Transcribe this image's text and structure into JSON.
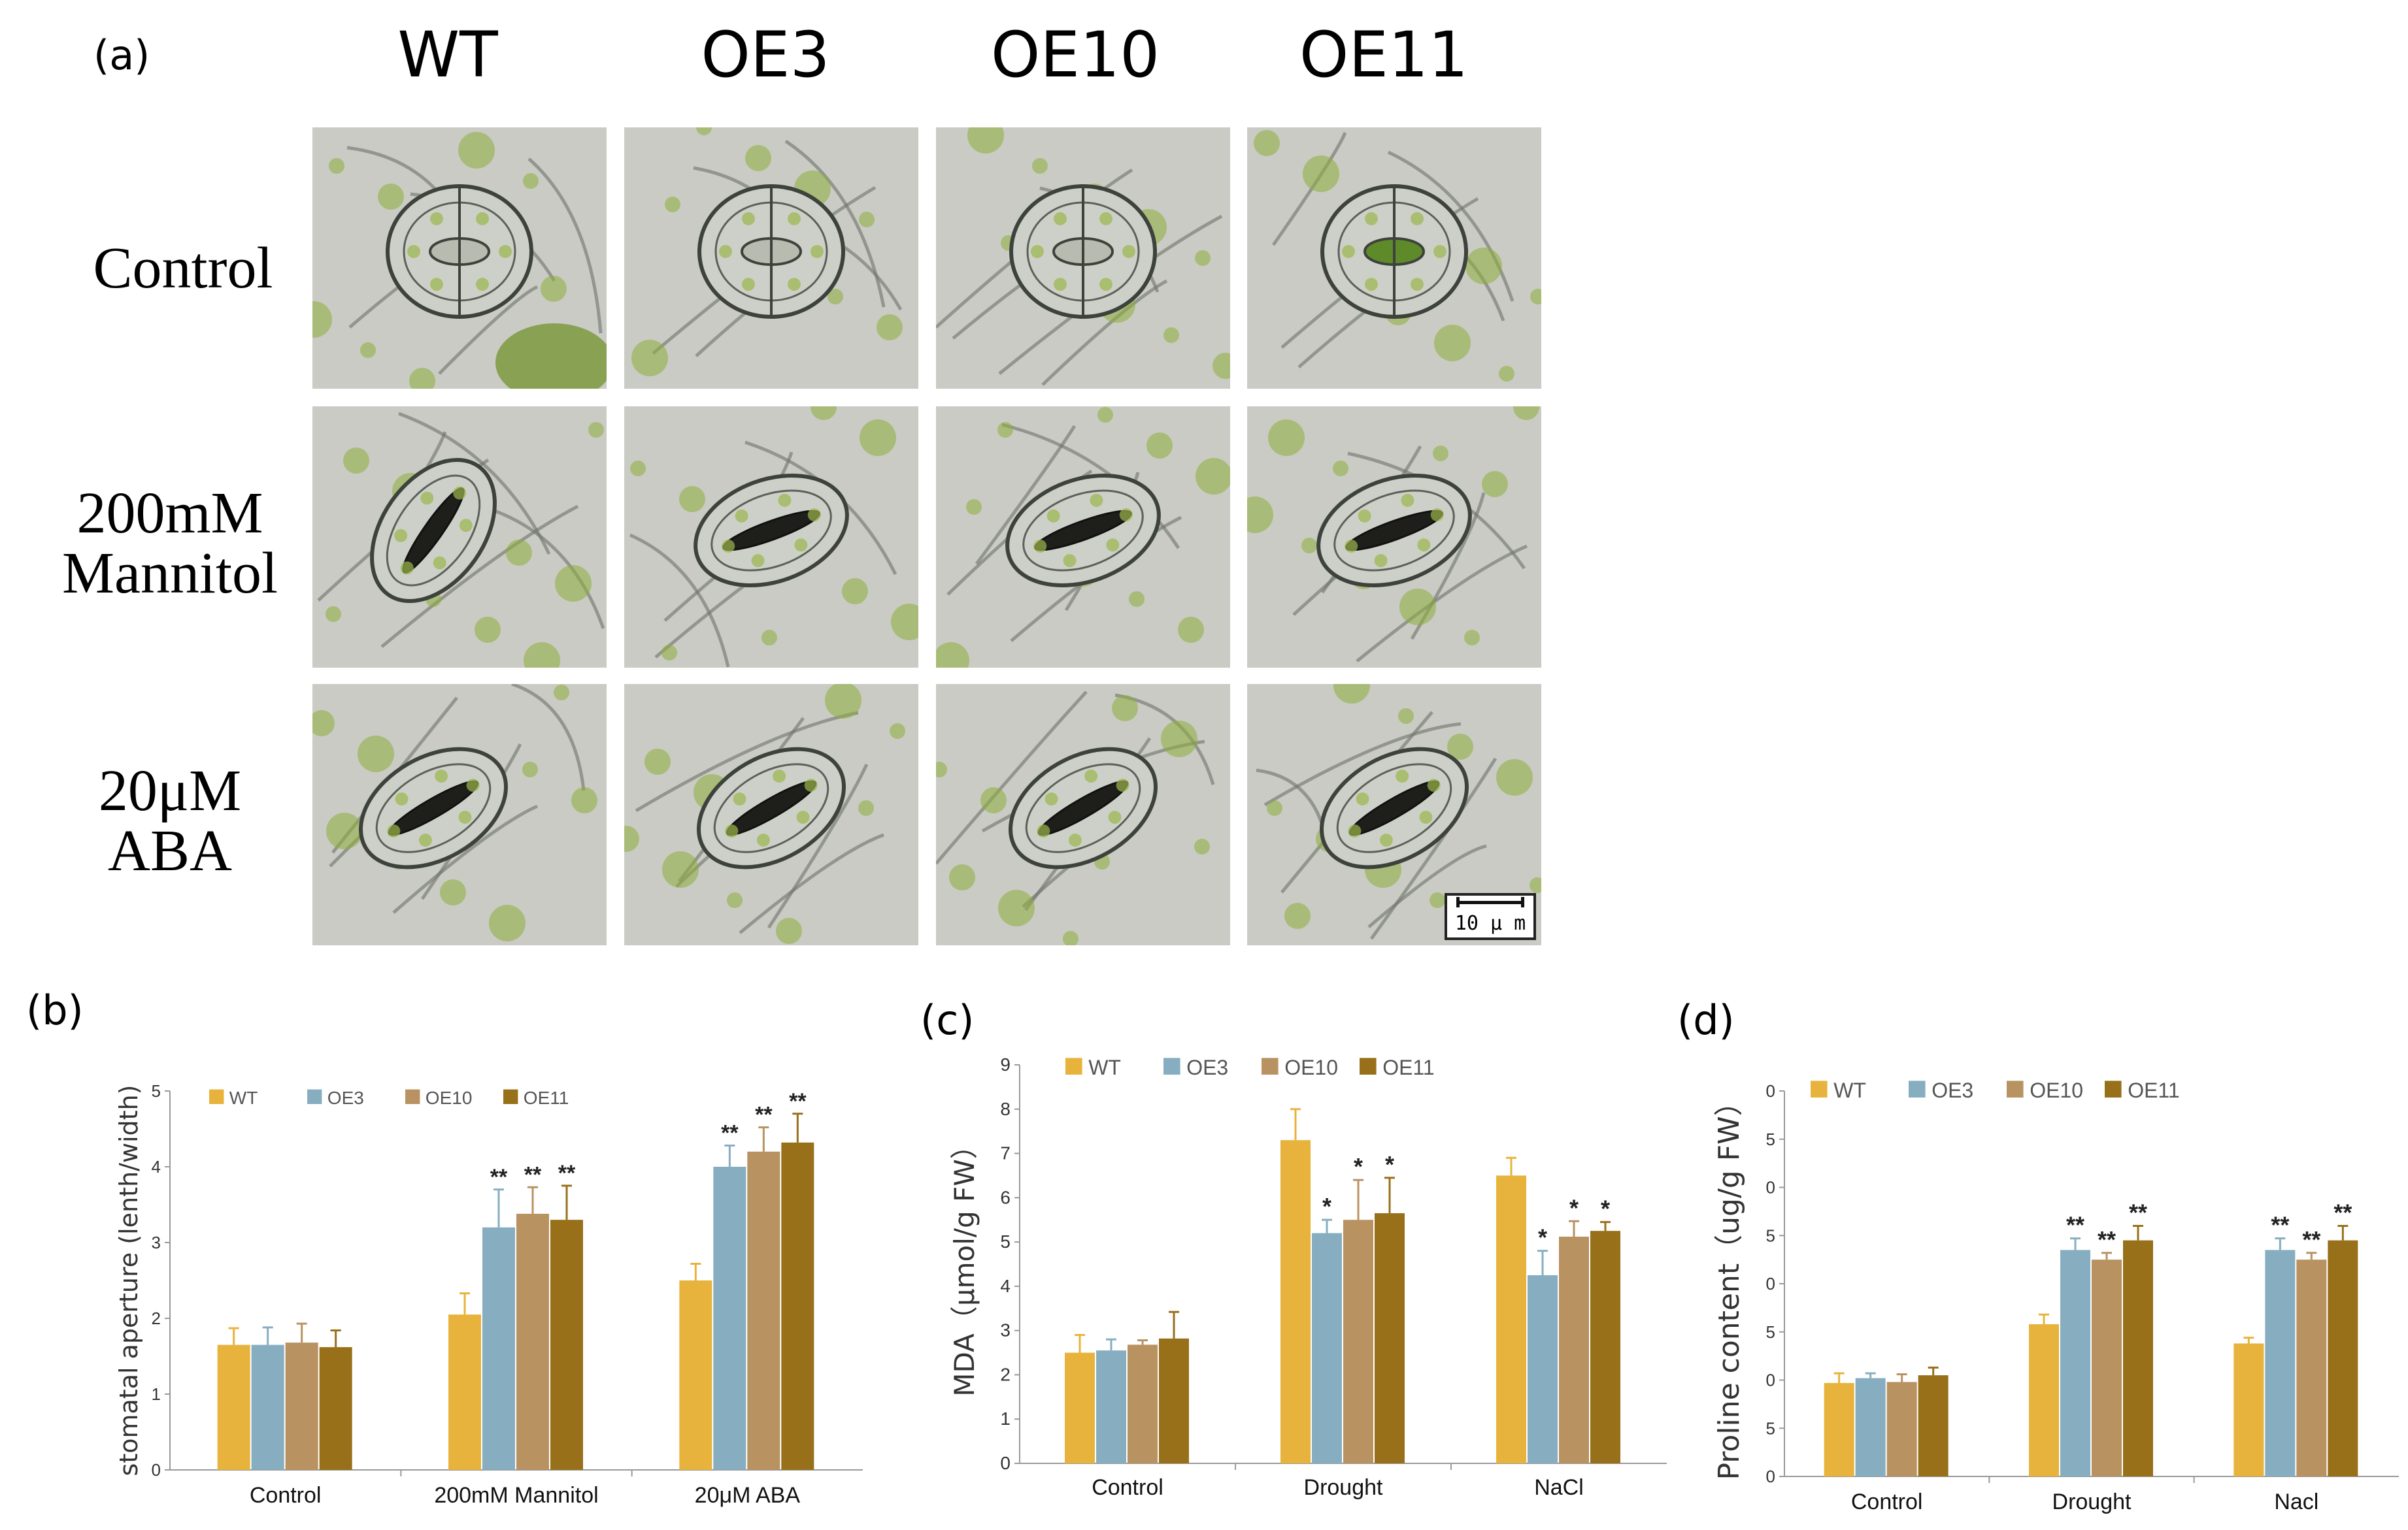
{
  "panel_a": {
    "label": "(a)",
    "columns": [
      "WT",
      "OE3",
      "OE10",
      "OE11"
    ],
    "rows": [
      {
        "line1": "Control",
        "line2": ""
      },
      {
        "line1": "200mM",
        "line2": "Mannitol"
      },
      {
        "line1": "20μM",
        "line2": "ABA"
      }
    ],
    "scale_bar": "10 μ m"
  },
  "colors": {
    "WT": "#e8b33c",
    "OE3": "#87aec0",
    "OE10": "#b99262",
    "OE11": "#98701a"
  },
  "chart_data": [
    {
      "panel": "(b)",
      "type": "bar",
      "ylabel": "stomatal aperture (lenth/width)",
      "ylim": [
        0,
        5
      ],
      "yticks": [
        "0",
        "1",
        "2",
        "3",
        "4",
        "5"
      ],
      "categories": [
        "Control",
        "200mM Mannitol",
        "20μM ABA"
      ],
      "series": [
        {
          "name": "WT",
          "values": [
            1.65,
            2.05,
            2.5
          ],
          "errors": [
            0.22,
            0.28,
            0.22
          ],
          "marks": [
            "",
            "",
            ""
          ]
        },
        {
          "name": "OE3",
          "values": [
            1.65,
            3.2,
            4.0
          ],
          "errors": [
            0.23,
            0.5,
            0.28
          ],
          "marks": [
            "",
            "**",
            "**"
          ]
        },
        {
          "name": "OE10",
          "values": [
            1.68,
            3.38,
            4.2
          ],
          "errors": [
            0.25,
            0.35,
            0.32
          ],
          "marks": [
            "",
            "**",
            "**"
          ]
        },
        {
          "name": "OE11",
          "values": [
            1.62,
            3.3,
            4.32
          ],
          "errors": [
            0.22,
            0.45,
            0.38
          ],
          "marks": [
            "",
            "**",
            "**"
          ]
        }
      ],
      "legend": "top"
    },
    {
      "panel": "(c)",
      "type": "bar",
      "ylabel": "MDA（μmol/g FW）",
      "ylim": [
        0,
        9
      ],
      "yticks": [
        "0",
        "1",
        "2",
        "3",
        "4",
        "5",
        "6",
        "7",
        "8",
        "9"
      ],
      "categories": [
        "Control",
        "Drought",
        "NaCl"
      ],
      "series": [
        {
          "name": "WT",
          "values": [
            2.5,
            7.3,
            6.5
          ],
          "errors": [
            0.4,
            0.7,
            0.4
          ],
          "marks": [
            "",
            "",
            ""
          ]
        },
        {
          "name": "OE3",
          "values": [
            2.55,
            5.2,
            4.25
          ],
          "errors": [
            0.25,
            0.3,
            0.55
          ],
          "marks": [
            "",
            "*",
            "*"
          ]
        },
        {
          "name": "OE10",
          "values": [
            2.68,
            5.5,
            5.12
          ],
          "errors": [
            0.1,
            0.9,
            0.35
          ],
          "marks": [
            "",
            "*",
            "*"
          ]
        },
        {
          "name": "OE11",
          "values": [
            2.82,
            5.65,
            5.25
          ],
          "errors": [
            0.6,
            0.8,
            0.2
          ],
          "marks": [
            "",
            "*",
            "*"
          ]
        }
      ],
      "legend": "top"
    },
    {
      "panel": "(d)",
      "type": "bar",
      "ylabel": "Proline content（ug/g FW）",
      "ylim": [
        0,
        4
      ],
      "yticks": [
        "0",
        "5",
        "0",
        "5",
        "0",
        "5",
        "0",
        "5",
        "0"
      ],
      "categories": [
        "Control",
        "Drought",
        "Nacl"
      ],
      "series": [
        {
          "name": "WT",
          "values": [
            0.97,
            1.58,
            1.38
          ],
          "errors": [
            0.1,
            0.1,
            0.06
          ],
          "marks": [
            "",
            "",
            ""
          ]
        },
        {
          "name": "OE3",
          "values": [
            1.02,
            2.35,
            2.35
          ],
          "errors": [
            0.05,
            0.12,
            0.12
          ],
          "marks": [
            "",
            "**",
            "**"
          ]
        },
        {
          "name": "OE10",
          "values": [
            0.98,
            2.25,
            2.25
          ],
          "errors": [
            0.08,
            0.07,
            0.07
          ],
          "marks": [
            "",
            "**",
            "**"
          ]
        },
        {
          "name": "OE11",
          "values": [
            1.05,
            2.45,
            2.45
          ],
          "errors": [
            0.08,
            0.15,
            0.15
          ],
          "marks": [
            "",
            "**",
            "**"
          ]
        }
      ],
      "legend": "top"
    }
  ]
}
